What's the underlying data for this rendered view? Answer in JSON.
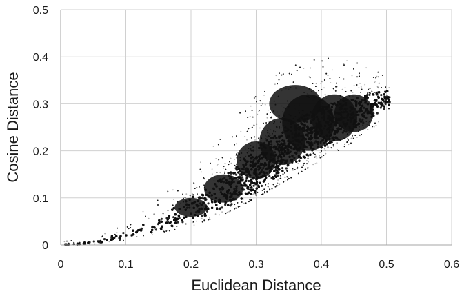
{
  "chart_data": {
    "type": "scatter",
    "title": "",
    "xlabel": "Euclidean Distance",
    "ylabel": "Cosine Distance",
    "xlim": [
      0,
      0.6
    ],
    "ylim": [
      0,
      0.5
    ],
    "x_ticks": [
      "0",
      "0.1",
      "0.2",
      "0.3",
      "0.4",
      "0.5",
      "0.6"
    ],
    "y_ticks": [
      "0",
      "0.1",
      "0.2",
      "0.3",
      "0.4",
      "0.5"
    ],
    "grid": true,
    "legend": "none",
    "point_color": "#111111",
    "series": [
      {
        "values": [],
        "representative_points": [
          {
            "x": 0.01,
            "y": 0.0
          },
          {
            "x": 0.05,
            "y": 0.005
          },
          {
            "x": 0.1,
            "y": 0.02
          },
          {
            "x": 0.15,
            "y": 0.045
          },
          {
            "x": 0.2,
            "y": 0.075
          },
          {
            "x": 0.25,
            "y": 0.11
          },
          {
            "x": 0.3,
            "y": 0.16
          },
          {
            "x": 0.35,
            "y": 0.21
          },
          {
            "x": 0.4,
            "y": 0.25
          },
          {
            "x": 0.45,
            "y": 0.28
          },
          {
            "x": 0.5,
            "y": 0.31
          }
        ],
        "upper_envelope": [
          {
            "x": 0.05,
            "y": 0.01
          },
          {
            "x": 0.1,
            "y": 0.05
          },
          {
            "x": 0.15,
            "y": 0.1
          },
          {
            "x": 0.2,
            "y": 0.16
          },
          {
            "x": 0.25,
            "y": 0.24
          },
          {
            "x": 0.3,
            "y": 0.33
          },
          {
            "x": 0.35,
            "y": 0.38
          },
          {
            "x": 0.4,
            "y": 0.4
          },
          {
            "x": 0.45,
            "y": 0.39
          },
          {
            "x": 0.5,
            "y": 0.36
          }
        ],
        "lower_envelope": [
          {
            "x": 0.05,
            "y": 0.0
          },
          {
            "x": 0.1,
            "y": 0.01
          },
          {
            "x": 0.15,
            "y": 0.025
          },
          {
            "x": 0.2,
            "y": 0.04
          },
          {
            "x": 0.25,
            "y": 0.065
          },
          {
            "x": 0.3,
            "y": 0.1
          },
          {
            "x": 0.35,
            "y": 0.14
          },
          {
            "x": 0.4,
            "y": 0.18
          },
          {
            "x": 0.45,
            "y": 0.22
          },
          {
            "x": 0.5,
            "y": 0.27
          }
        ]
      }
    ]
  }
}
